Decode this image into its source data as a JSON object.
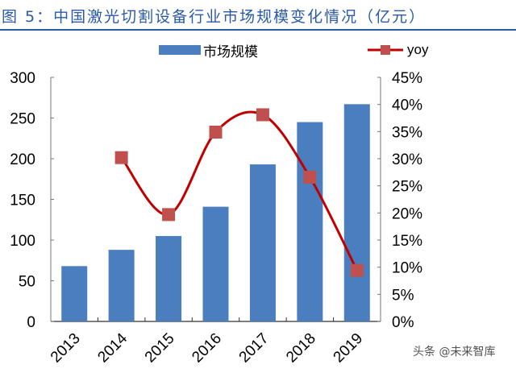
{
  "title": "图 5：中国激光切割设备行业市场规模变化情况（亿元）",
  "watermark": "头条 @未来智库",
  "colors": {
    "title": "#2a5aa8",
    "rule": "#2a5aa8",
    "bar": "#4a7ebf",
    "line": "#c00000",
    "marker": "#c0504d"
  },
  "chart_data": {
    "type": "bar+line",
    "categories": [
      "2013",
      "2014",
      "2015",
      "2016",
      "2017",
      "2018",
      "2019"
    ],
    "series": [
      {
        "name": "市场规模",
        "type": "bar",
        "axis": "left",
        "values": [
          68,
          88,
          105,
          141,
          193,
          245,
          267
        ]
      },
      {
        "name": "yoy",
        "type": "line",
        "axis": "right",
        "smooth": true,
        "marker": "square",
        "values": [
          null,
          30.2,
          19.7,
          34.9,
          38.1,
          26.6,
          9.4
        ]
      }
    ],
    "y_left": {
      "range": [
        0,
        300
      ],
      "ticks": [
        "0",
        "50",
        "100",
        "150",
        "200",
        "250",
        "300"
      ]
    },
    "y_right": {
      "range": [
        0,
        45
      ],
      "ticks": [
        "0%",
        "5%",
        "10%",
        "15%",
        "20%",
        "25%",
        "30%",
        "35%",
        "40%",
        "45%"
      ]
    },
    "legend": "top-center",
    "grid": false
  }
}
